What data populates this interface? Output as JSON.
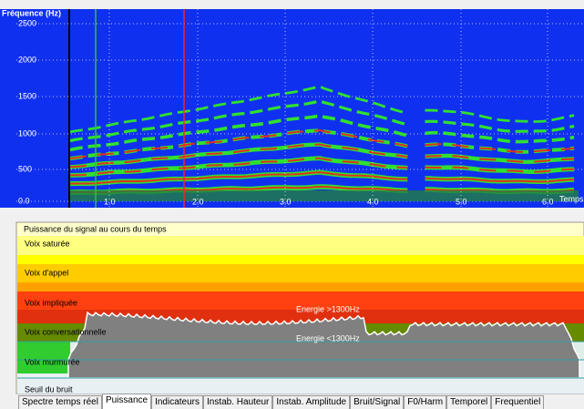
{
  "spectrogram": {
    "axis_title": "Fréquence (Hz)",
    "y_labels": [
      "2500",
      "2000",
      "1500",
      "1000",
      "500",
      "0.0"
    ],
    "x_labels": [
      "1.0",
      "2.0",
      "3.0",
      "4.0",
      "5.0",
      "6.0"
    ],
    "x_axis_title": "Temps(s)"
  },
  "power": {
    "title": "Puissance du signal au cours du temps",
    "zones": [
      "Voix saturée",
      "Voix d'appel",
      "Voix impliquée",
      "Voix conversationnelle",
      "Voix murmurée",
      "Seuil du bruit"
    ],
    "annotations": [
      "Energie >1300Hz",
      "Energie <1300Hz"
    ]
  },
  "tabs": [
    "Spectre temps réel",
    "Puissance",
    "Indicateurs",
    "Instab. Hauteur",
    "Instab. Amplitude",
    "Bruit/Signal",
    "F0/Harm",
    "Temporel",
    "Frequentiel"
  ]
}
